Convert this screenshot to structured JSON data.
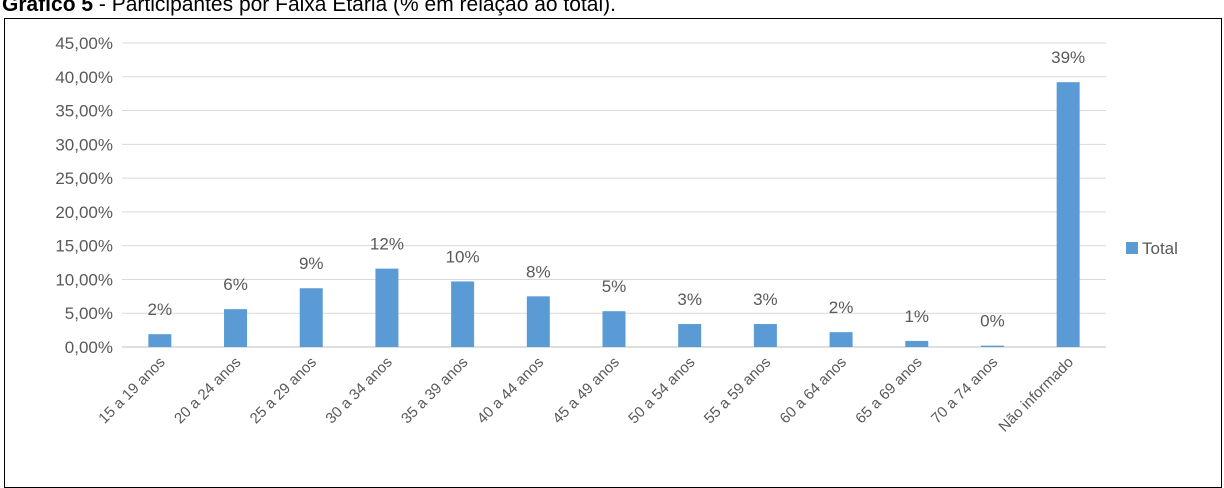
{
  "caption": {
    "number": "Gráfico 5",
    "separator": " - ",
    "title": "Participantes por Faixa Etária (% em relação ao total)."
  },
  "colors": {
    "bar": "#5B9BD5",
    "grid": "#D9D9D9",
    "axis": "#BFBFBF",
    "text": "#595959"
  },
  "chart_data": {
    "type": "bar",
    "categories": [
      "15 a 19 anos",
      "20 a 24 anos",
      "25 a 29 anos",
      "30 a 34 anos",
      "35 a 39 anos",
      "40 a 44 anos",
      "45 a 49 anos",
      "50 a 54 anos",
      "55 a 59 anos",
      "60 a 64 anos",
      "65 a 69 anos",
      "70 a 74 anos",
      "Não informado"
    ],
    "series": [
      {
        "name": "Total",
        "values": [
          1.9,
          5.6,
          8.7,
          11.6,
          9.7,
          7.5,
          5.3,
          3.4,
          3.4,
          2.2,
          0.9,
          0.2,
          39.2
        ],
        "data_labels": [
          "2%",
          "6%",
          "9%",
          "12%",
          "10%",
          "8%",
          "5%",
          "3%",
          "3%",
          "2%",
          "1%",
          "0%",
          "39%"
        ]
      }
    ],
    "ylim": [
      0,
      45
    ],
    "yticks": [
      0,
      5,
      10,
      15,
      20,
      25,
      30,
      35,
      40,
      45
    ],
    "ytick_labels": [
      "0,00%",
      "5,00%",
      "10,00%",
      "15,00%",
      "20,00%",
      "25,00%",
      "30,00%",
      "35,00%",
      "40,00%",
      "45,00%"
    ],
    "grid": true,
    "legend": "right",
    "xlabel": "",
    "ylabel": ""
  }
}
